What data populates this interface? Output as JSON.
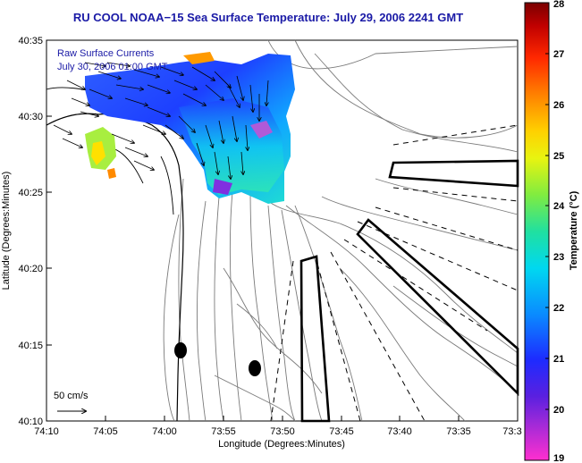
{
  "title": "RU COOL  NOAA−15  Sea Surface Temperature:  July 29, 2006 2241 GMT",
  "overlay_label_line1": "Raw Surface Currents",
  "overlay_label_line2": "July 30, 2006 01:00 GMT",
  "scale_label": "50 cm/s",
  "x_axis_label": "Longitude (Degrees:Minutes)",
  "y_axis_label": "Latitude (Degrees:Minutes)",
  "x_ticks": [
    "74:10",
    "74:05",
    "74:00",
    "73:55",
    "73:50",
    "73:45",
    "73:40",
    "73:35",
    "73:3"
  ],
  "y_ticks": [
    "40:35",
    "40:30",
    "40:25",
    "40:20",
    "40:15",
    "40:10"
  ],
  "colorbar": {
    "label": "Temperature (°C)",
    "ticks": [
      "28",
      "27",
      "26",
      "25",
      "24",
      "23",
      "22",
      "21",
      "20",
      "19"
    ],
    "min": 19,
    "max": 28,
    "colors": [
      "#ff2fcf",
      "#7a1fd8",
      "#1d2bff",
      "#0a8cff",
      "#00e6e6",
      "#38e08a",
      "#b8f02a",
      "#ffef00",
      "#ffa000",
      "#ff3c00",
      "#d40000",
      "#7a0000"
    ]
  }
}
